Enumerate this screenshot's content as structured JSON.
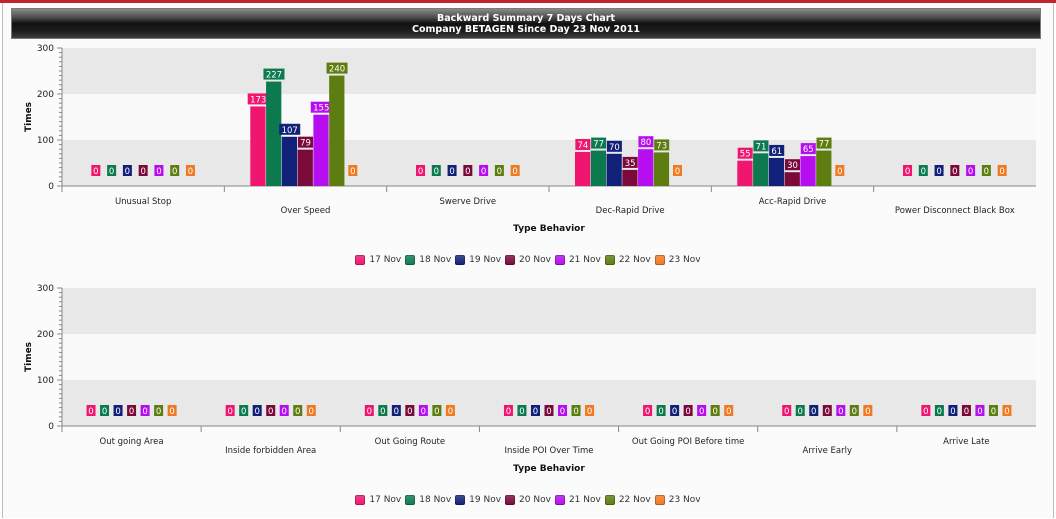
{
  "header": {
    "title": "Backward Summary 7 Days Chart",
    "subtitle": "Company BETAGEN Since Day 23 Nov 2011"
  },
  "colors": [
    "#f0156e",
    "#0c7a4e",
    "#11217a",
    "#7a0a3a",
    "#b60ef0",
    "#5e7d10",
    "#f07a22"
  ],
  "legend": [
    "17 Nov",
    "18 Nov",
    "19 Nov",
    "20 Nov",
    "21 Nov",
    "22 Nov",
    "23 Nov"
  ],
  "chart_data": [
    {
      "type": "bar",
      "title": "Backward Summary 7 Days Chart",
      "xlabel": "Type Behavior",
      "ylabel": "Times",
      "ylim": [
        0,
        300
      ],
      "yticks": [
        0,
        100,
        200,
        300
      ],
      "legend_position": "bottom",
      "categories": [
        "Unusual Stop",
        "Over Speed",
        "Swerve Drive",
        "Dec-Rapid Drive",
        "Acc-Rapid Drive",
        "Power Disconnect Black Box"
      ],
      "series": [
        {
          "name": "17 Nov",
          "values": [
            0,
            173,
            0,
            74,
            55,
            0
          ]
        },
        {
          "name": "18 Nov",
          "values": [
            0,
            227,
            0,
            77,
            71,
            0
          ]
        },
        {
          "name": "19 Nov",
          "values": [
            0,
            107,
            0,
            70,
            61,
            0
          ]
        },
        {
          "name": "20 Nov",
          "values": [
            0,
            79,
            0,
            35,
            30,
            0
          ]
        },
        {
          "name": "21 Nov",
          "values": [
            0,
            155,
            0,
            80,
            65,
            0
          ]
        },
        {
          "name": "22 Nov",
          "values": [
            0,
            240,
            0,
            73,
            77,
            0
          ]
        },
        {
          "name": "23 Nov",
          "values": [
            0,
            0,
            0,
            0,
            0,
            0
          ]
        }
      ]
    },
    {
      "type": "bar",
      "title": "",
      "xlabel": "Type Behavior",
      "ylabel": "Times",
      "ylim": [
        0,
        300
      ],
      "yticks": [
        0,
        100,
        200,
        300
      ],
      "legend_position": "bottom",
      "categories": [
        "Out going Area",
        "Inside forbidden Area",
        "Out Going Route",
        "Inside POI Over Time",
        "Out Going POI Before time",
        "Arrive Early",
        "Arrive Late"
      ],
      "series": [
        {
          "name": "17 Nov",
          "values": [
            0,
            0,
            0,
            0,
            0,
            0,
            0
          ]
        },
        {
          "name": "18 Nov",
          "values": [
            0,
            0,
            0,
            0,
            0,
            0,
            0
          ]
        },
        {
          "name": "19 Nov",
          "values": [
            0,
            0,
            0,
            0,
            0,
            0,
            0
          ]
        },
        {
          "name": "20 Nov",
          "values": [
            0,
            0,
            0,
            0,
            0,
            0,
            0
          ]
        },
        {
          "name": "21 Nov",
          "values": [
            0,
            0,
            0,
            0,
            0,
            0,
            0
          ]
        },
        {
          "name": "22 Nov",
          "values": [
            0,
            0,
            0,
            0,
            0,
            0,
            0
          ]
        },
        {
          "name": "23 Nov",
          "values": [
            0,
            0,
            0,
            0,
            0,
            0,
            0
          ]
        }
      ]
    }
  ]
}
